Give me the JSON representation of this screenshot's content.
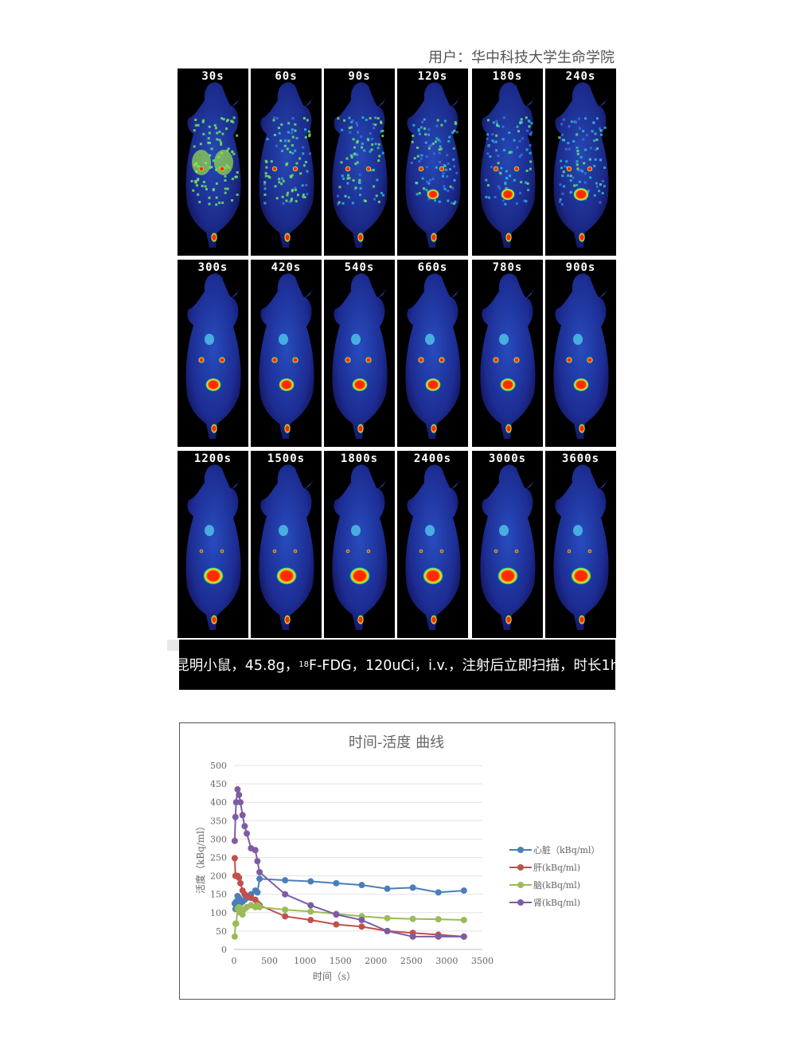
{
  "user_label": "用户：华中科技大学生命学院",
  "frames": [
    "30s",
    "60s",
    "90s",
    "120s",
    "180s",
    "240s",
    "300s",
    "420s",
    "540s",
    "660s",
    "780s",
    "900s",
    "1200s",
    "1500s",
    "1800s",
    "2400s",
    "3000s",
    "3600s"
  ],
  "caption": {
    "prefix": "昆明小鼠，45.8g，",
    "sup": "18",
    "suffix": "F-FDG，120uCi，i.v.，注射后立即扫描，时长1h"
  },
  "colors": {
    "heart": "#4a7ebb",
    "liver": "#c0504d",
    "brain": "#9bbb59",
    "kidney": "#7e5ca3"
  },
  "chart_data": {
    "type": "line",
    "title": "时间-活度 曲线",
    "xlabel": "时间（s）",
    "ylabel": "活度（kBq/ml）",
    "xlim": [
      0,
      3500
    ],
    "ylim": [
      0,
      500
    ],
    "xticks": [
      0,
      500,
      1000,
      1500,
      2000,
      2500,
      3000,
      3500
    ],
    "yticks": [
      0,
      50,
      100,
      150,
      200,
      250,
      300,
      350,
      400,
      450,
      500
    ],
    "grid": true,
    "legend": "right",
    "series": [
      {
        "name": "心脏（kBq/ml）",
        "color": "#4a7ebb",
        "x": [
          10,
          20,
          30,
          50,
          70,
          90,
          120,
          150,
          180,
          240,
          300,
          330,
          360,
          720,
          1080,
          1440,
          1800,
          2160,
          2520,
          2880,
          3240
        ],
        "y": [
          125,
          110,
          130,
          145,
          140,
          125,
          130,
          135,
          140,
          150,
          160,
          155,
          192,
          188,
          185,
          180,
          175,
          165,
          168,
          155,
          160
        ]
      },
      {
        "name": "肝(kBq/ml)",
        "color": "#c0504d",
        "x": [
          10,
          20,
          30,
          50,
          70,
          90,
          120,
          150,
          180,
          240,
          300,
          330,
          360,
          720,
          1080,
          1440,
          1800,
          2160,
          2520,
          2880,
          3240
        ],
        "y": [
          248,
          200,
          200,
          200,
          195,
          180,
          160,
          150,
          145,
          140,
          135,
          125,
          120,
          90,
          80,
          68,
          62,
          50,
          45,
          40,
          35
        ]
      },
      {
        "name": "脑(kBq/ml)",
        "color": "#9bbb59",
        "x": [
          10,
          20,
          30,
          50,
          70,
          90,
          120,
          150,
          180,
          240,
          300,
          330,
          360,
          720,
          1080,
          1440,
          1800,
          2160,
          2520,
          2880,
          3240
        ],
        "y": [
          35,
          70,
          70,
          110,
          115,
          100,
          95,
          110,
          115,
          120,
          115,
          120,
          115,
          108,
          103,
          97,
          90,
          85,
          83,
          82,
          80
        ]
      },
      {
        "name": "肾(kBq/ml)",
        "color": "#7e5ca3",
        "x": [
          10,
          20,
          30,
          50,
          70,
          90,
          120,
          150,
          180,
          240,
          300,
          330,
          360,
          720,
          1080,
          1440,
          1800,
          2160,
          2520,
          2880,
          3240
        ],
        "y": [
          295,
          360,
          400,
          435,
          420,
          400,
          365,
          335,
          315,
          275,
          270,
          240,
          210,
          150,
          120,
          95,
          80,
          50,
          35,
          35,
          35
        ]
      }
    ]
  }
}
